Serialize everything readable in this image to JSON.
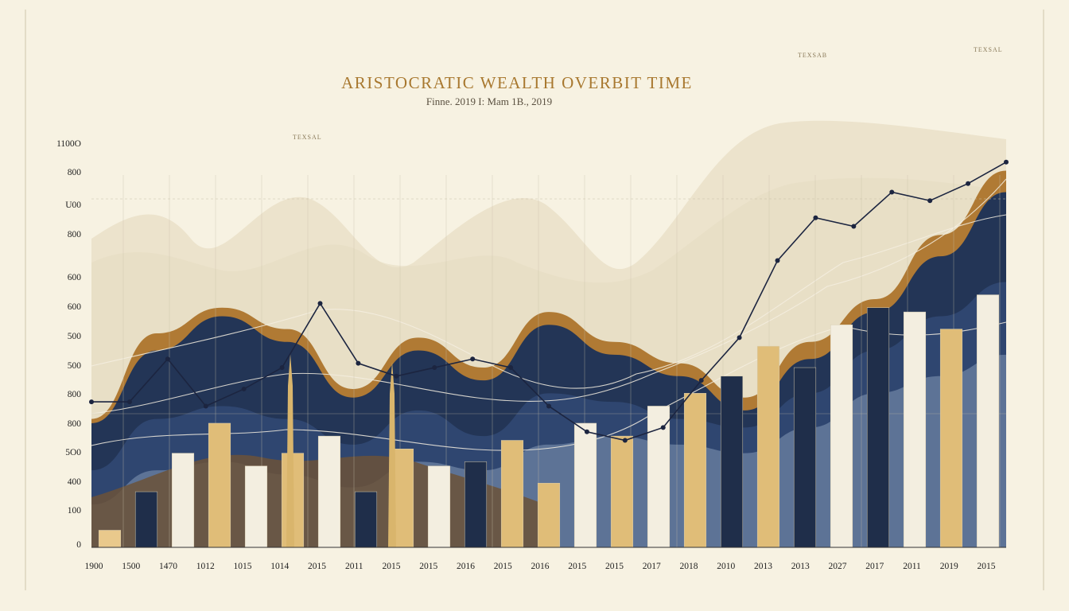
{
  "chart_data": {
    "type": "area",
    "title": "ARISTOCRATIC WEALTH   OVERBIT TIME",
    "subtitle": "Finne. 2019 I: Mam 1B., 2019",
    "y_tick_labels": [
      "1100O",
      "800",
      "U00",
      "800",
      "600",
      "600",
      "500",
      "500",
      "800",
      "800",
      "5O0",
      "400",
      "100",
      "0"
    ],
    "x_tick_labels": [
      "1900",
      "1500",
      "1470",
      "1012",
      "1015",
      "1014",
      "2015",
      "2011",
      "2015",
      "2015",
      "2016",
      "2015",
      "2016",
      "2015",
      "2015",
      "2017",
      "2018",
      "2010",
      "2013",
      "2013",
      "2027",
      "2017",
      "2011",
      "2019",
      "2015"
    ],
    "annotations": [
      "TEXSAL",
      "TEXSAB",
      "TEXSAL"
    ],
    "line_series": {
      "name": "",
      "values": [
        0.34,
        0.34,
        0.44,
        0.33,
        0.37,
        0.42,
        0.57,
        0.43,
        0.4,
        0.42,
        0.44,
        0.42,
        0.33,
        0.27,
        0.25,
        0.28,
        0.39,
        0.49,
        0.67,
        0.77,
        0.75,
        0.83,
        0.81,
        0.85,
        0.9
      ]
    },
    "bars": {
      "values": [
        0.04,
        0.13,
        0.22,
        0.29,
        0.19,
        0.22,
        0.26,
        0.13,
        0.23,
        0.19,
        0.2,
        0.25,
        0.15,
        0.29,
        0.26,
        0.33,
        0.36,
        0.4,
        0.47,
        0.42,
        0.52,
        0.56,
        0.55,
        0.51,
        0.59
      ],
      "colors": [
        "#e9c98c",
        "#1f2e4a",
        "#f3eee0",
        "#e0bd78",
        "#f3eee0",
        "#e0bd78",
        "#f3eee0",
        "#1f2e4a",
        "#e0bd78",
        "#f3eee0",
        "#1f2e4a",
        "#e0bd78",
        "#e0bd78",
        "#f3eee0",
        "#e0bd78",
        "#f3eee0",
        "#e0bd78",
        "#1f2e4a",
        "#e0bd78",
        "#1f2e4a",
        "#f3eee0",
        "#1f2e4a",
        "#f3eee0",
        "#e0bd78",
        "#f3eee0"
      ]
    },
    "areas": [
      {
        "name": "",
        "color": "#b07a34",
        "values": [
          0.3,
          0.5,
          0.56,
          0.51,
          0.37,
          0.49,
          0.42,
          0.55,
          0.48,
          0.43,
          0.35,
          0.48,
          0.58,
          0.73,
          0.88
        ]
      },
      {
        "name": "",
        "color": "#233556",
        "values": [
          0.29,
          0.46,
          0.54,
          0.48,
          0.35,
          0.46,
          0.39,
          0.52,
          0.45,
          0.4,
          0.32,
          0.44,
          0.55,
          0.68,
          0.83
        ]
      },
      {
        "name": "",
        "color": "#2f4670",
        "values": [
          0.18,
          0.3,
          0.33,
          0.3,
          0.24,
          0.32,
          0.26,
          0.36,
          0.34,
          0.3,
          0.28,
          0.36,
          0.46,
          0.54,
          0.62
        ]
      },
      {
        "name": "",
        "color": "#5d7396",
        "values": [
          0.1,
          0.18,
          0.2,
          0.17,
          0.14,
          0.2,
          0.18,
          0.24,
          0.26,
          0.24,
          0.22,
          0.28,
          0.36,
          0.4,
          0.45
        ]
      }
    ],
    "colors": {
      "background": "#f7f2e2",
      "accent": "#a8782f",
      "line": "#1c2540",
      "navy": "#233556",
      "gold": "#e0bd78",
      "cream": "#f3eee0"
    },
    "grid": true,
    "legend": "none"
  }
}
